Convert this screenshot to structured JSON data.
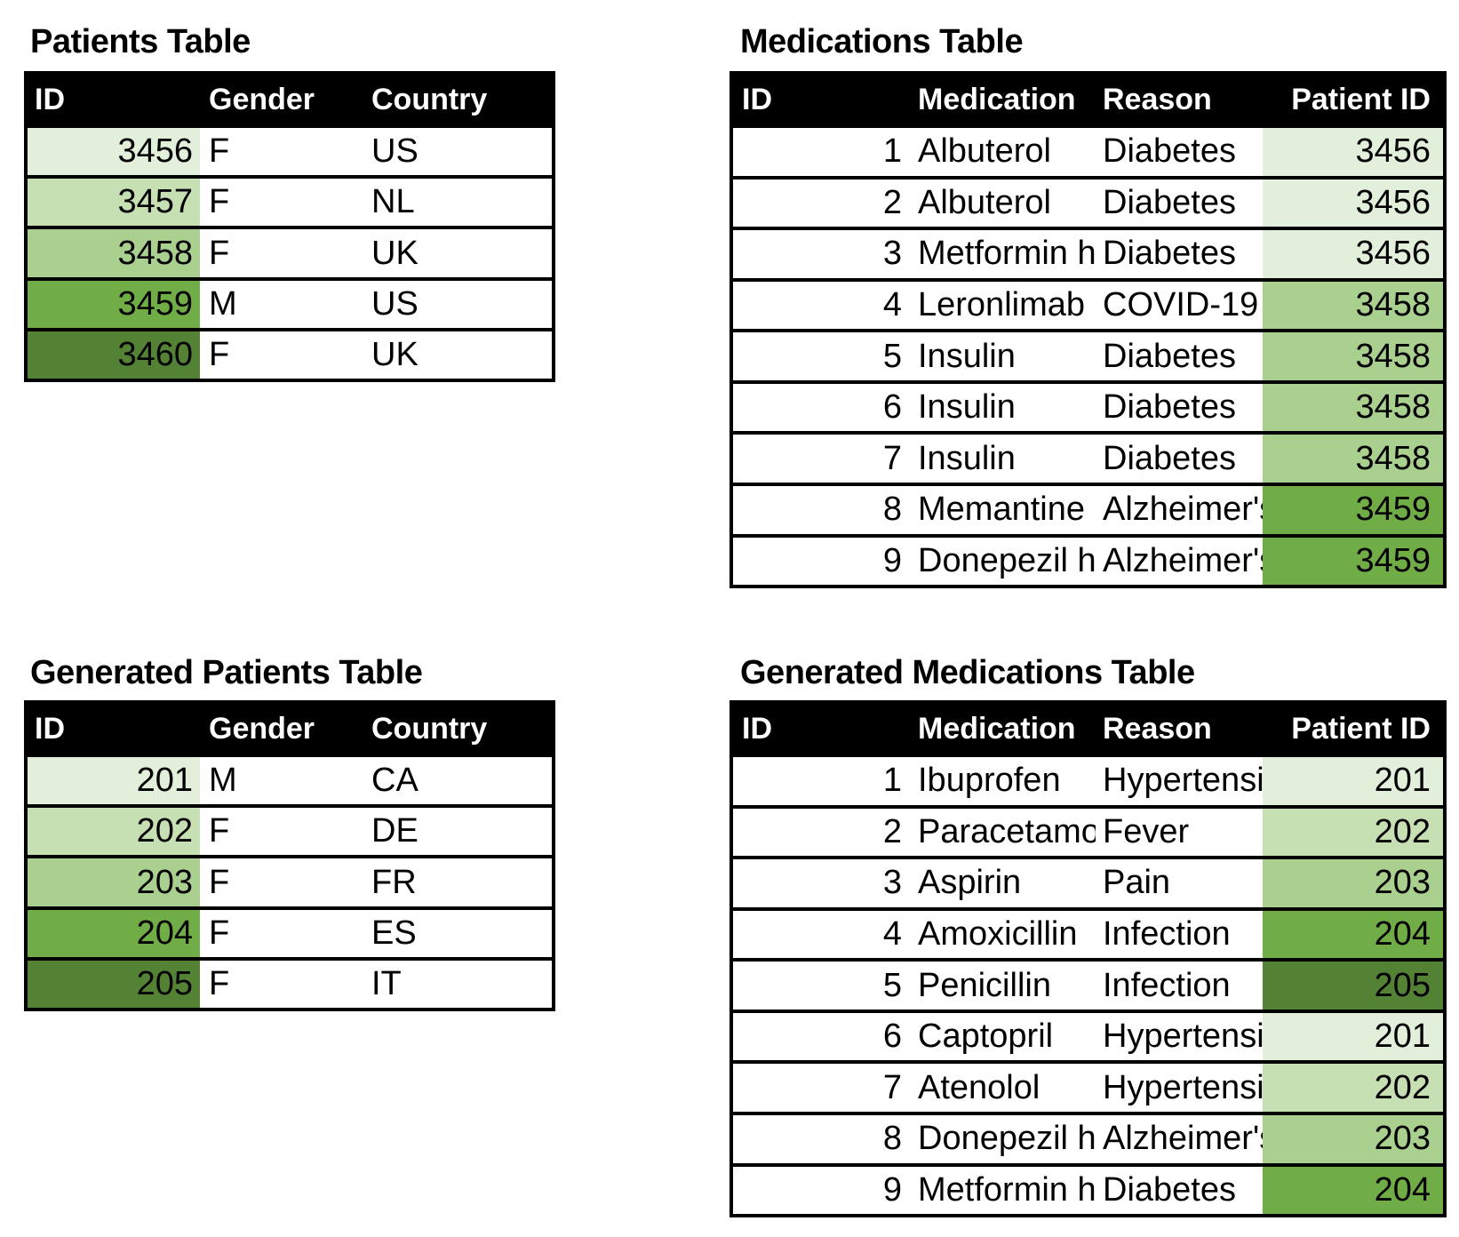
{
  "colors": {
    "background": "#FFFFFF",
    "table_border": "#000000",
    "header_bg": "#000000",
    "header_text": "#FFFFFF",
    "green_scale": [
      "#E2EFDA",
      "#C6E0B4",
      "#A9D08E",
      "#70AD47",
      "#548235"
    ]
  },
  "chart_data": [
    {
      "type": "table",
      "title": "Patients Table",
      "columns": [
        "ID",
        "Gender",
        "Country"
      ],
      "key_column": "ID",
      "rows": [
        [
          "3456",
          "F",
          "US"
        ],
        [
          "3457",
          "F",
          "NL"
        ],
        [
          "3458",
          "F",
          "UK"
        ],
        [
          "3459",
          "M",
          "US"
        ],
        [
          "3460",
          "F",
          "UK"
        ]
      ],
      "row_key_colors": [
        "#E2EFDA",
        "#C6E0B4",
        "#A9D08E",
        "#70AD47",
        "#548235"
      ]
    },
    {
      "type": "table",
      "title": "Medications Table",
      "columns": [
        "ID",
        "Medication",
        "Reason",
        "Patient ID"
      ],
      "key_column": "Patient ID",
      "rows": [
        [
          "1",
          "Albuterol",
          "Diabetes",
          "3456"
        ],
        [
          "2",
          "Albuterol",
          "Diabetes",
          "3456"
        ],
        [
          "3",
          "Metformin h",
          "Diabetes",
          "3456"
        ],
        [
          "4",
          "Leronlimab",
          "COVID-19",
          "3458"
        ],
        [
          "5",
          "Insulin",
          "Diabetes",
          "3458"
        ],
        [
          "6",
          "Insulin",
          "Diabetes",
          "3458"
        ],
        [
          "7",
          "Insulin",
          "Diabetes",
          "3458"
        ],
        [
          "8",
          "Memantine",
          "Alzheimer's",
          "3459"
        ],
        [
          "9",
          "Donepezil h",
          "Alzheimer's",
          "3459"
        ]
      ],
      "row_key_colors": [
        "#E2EFDA",
        "#E2EFDA",
        "#E2EFDA",
        "#A9D08E",
        "#A9D08E",
        "#A9D08E",
        "#A9D08E",
        "#70AD47",
        "#70AD47"
      ]
    },
    {
      "type": "table",
      "title": "Generated Patients Table",
      "columns": [
        "ID",
        "Gender",
        "Country"
      ],
      "key_column": "ID",
      "rows": [
        [
          "201",
          "M",
          "CA"
        ],
        [
          "202",
          "F",
          "DE"
        ],
        [
          "203",
          "F",
          "FR"
        ],
        [
          "204",
          "F",
          "ES"
        ],
        [
          "205",
          "F",
          "IT"
        ]
      ],
      "row_key_colors": [
        "#E2EFDA",
        "#C6E0B4",
        "#A9D08E",
        "#70AD47",
        "#548235"
      ]
    },
    {
      "type": "table",
      "title": "Generated Medications Table",
      "columns": [
        "ID",
        "Medication",
        "Reason",
        "Patient ID"
      ],
      "key_column": "Patient ID",
      "rows": [
        [
          "1",
          "Ibuprofen",
          "Hypertension",
          "201"
        ],
        [
          "2",
          "Paracetamol",
          "Fever",
          "202"
        ],
        [
          "3",
          "Aspirin",
          "Pain",
          "203"
        ],
        [
          "4",
          "Amoxicillin",
          "Infection",
          "204"
        ],
        [
          "5",
          "Penicillin",
          "Infection",
          "205"
        ],
        [
          "6",
          "Captopril",
          "Hypertension",
          "201"
        ],
        [
          "7",
          "Atenolol",
          "Hypertension",
          "202"
        ],
        [
          "8",
          "Donepezil h",
          "Alzheimer's",
          "203"
        ],
        [
          "9",
          "Metformin h",
          "Diabetes",
          "204"
        ]
      ],
      "row_key_colors": [
        "#E2EFDA",
        "#C6E0B4",
        "#A9D08E",
        "#70AD47",
        "#548235",
        "#E2EFDA",
        "#C6E0B4",
        "#A9D08E",
        "#70AD47"
      ]
    }
  ]
}
